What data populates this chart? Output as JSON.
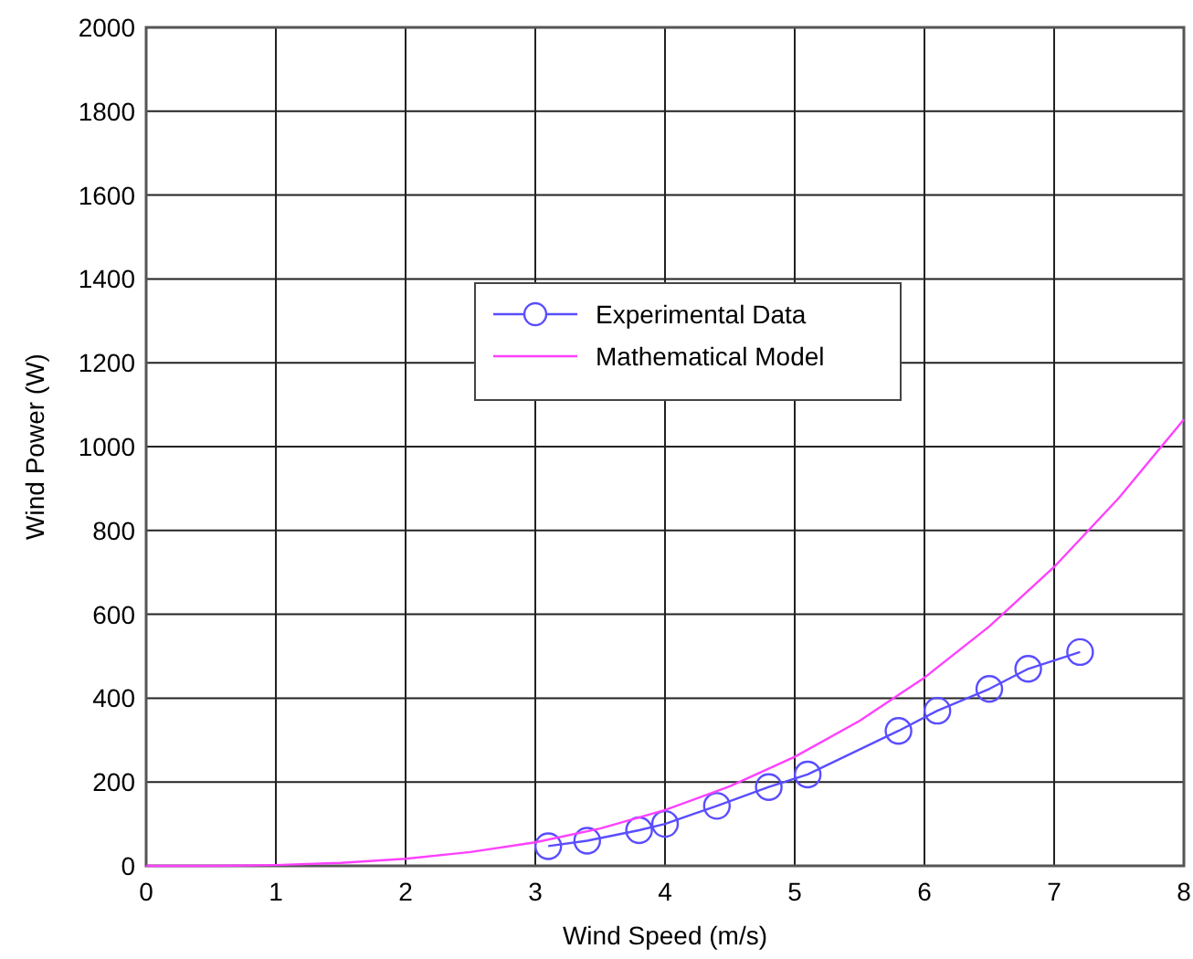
{
  "chart_data": {
    "type": "line",
    "xlabel": "Wind Speed (m/s)",
    "ylabel": "Wind Power (W)",
    "xlim": [
      0,
      8
    ],
    "ylim": [
      0,
      2000
    ],
    "xticks": [
      0,
      1,
      2,
      3,
      4,
      5,
      6,
      7,
      8
    ],
    "yticks": [
      0,
      200,
      400,
      600,
      800,
      1000,
      1200,
      1400,
      1600,
      1800,
      2000
    ],
    "grid": true,
    "legend": "top",
    "line_style": "solid",
    "series": [
      {
        "name": "Experimental Data",
        "color": "#5a4dff",
        "marker": "circle",
        "x": [
          3.1,
          3.4,
          3.8,
          4.0,
          4.4,
          4.8,
          5.1,
          5.8,
          6.1,
          6.5,
          6.8,
          7.2
        ],
        "values": [
          47,
          60,
          85,
          100,
          143,
          188,
          218,
          322,
          370,
          422,
          470,
          510
        ]
      },
      {
        "name": "Mathematical Model",
        "color": "#ff40ff",
        "marker": "none",
        "x": [
          0,
          0.5,
          1,
          1.5,
          2,
          2.5,
          3,
          3.5,
          4,
          4.5,
          5,
          5.5,
          6,
          6.5,
          7,
          7.5,
          8
        ],
        "values": [
          0,
          0,
          2,
          7,
          17,
          33,
          56,
          89,
          133,
          190,
          260,
          346,
          449,
          571,
          713,
          878,
          1065
        ]
      }
    ]
  }
}
